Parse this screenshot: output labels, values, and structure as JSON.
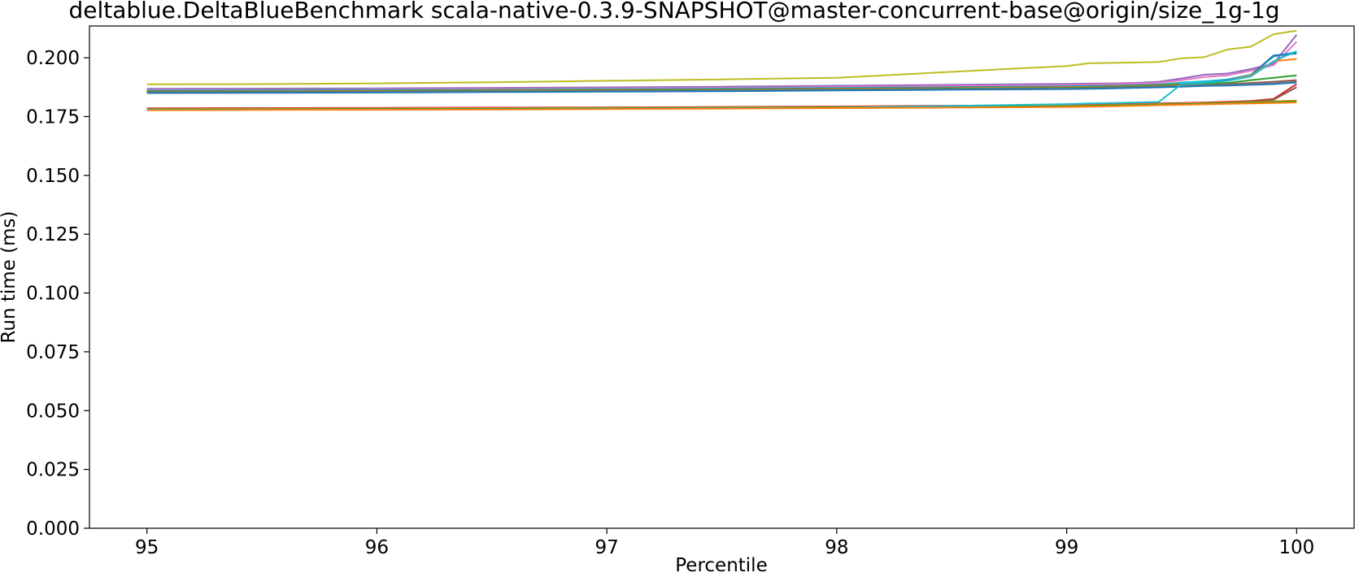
{
  "chart_data": {
    "type": "line",
    "title": "deltablue.DeltaBlueBenchmark scala-native-0.3.9-SNAPSHOT@master-concurrent-base@origin/size_1g-1g",
    "xlabel": "Percentile",
    "ylabel": "Run time (ms)",
    "xlim": [
      94.75,
      100.25
    ],
    "ylim": [
      0.0,
      0.2135
    ],
    "grid": false,
    "legend": "none",
    "xticks": [
      95,
      96,
      97,
      98,
      99,
      100
    ],
    "xtick_labels": [
      "95",
      "96",
      "97",
      "98",
      "99",
      "100"
    ],
    "yticks": [
      0.0,
      0.025,
      0.05,
      0.075,
      0.1,
      0.125,
      0.15,
      0.175,
      0.2
    ],
    "ytick_labels": [
      "0.000",
      "0.025",
      "0.050",
      "0.075",
      "0.100",
      "0.125",
      "0.150",
      "0.175",
      "0.200"
    ],
    "x": [
      95.0,
      95.5,
      96.0,
      96.5,
      97.0,
      97.5,
      98.0,
      98.5,
      99.0,
      99.1,
      99.2,
      99.3,
      99.4,
      99.5,
      99.6,
      99.7,
      99.8,
      99.9,
      100.0
    ],
    "series": [
      {
        "color": "#bcbd22",
        "values": [
          0.1887,
          0.1888,
          0.1891,
          0.1896,
          0.1902,
          0.1908,
          0.1915,
          0.194,
          0.1965,
          0.1977,
          0.1978,
          0.198,
          0.1982,
          0.1998,
          0.2003,
          0.2035,
          0.2047,
          0.21,
          0.2115
        ]
      },
      {
        "color": "#9467bd",
        "values": [
          0.1868,
          0.1869,
          0.187,
          0.1872,
          0.1874,
          0.1877,
          0.1881,
          0.1885,
          0.1889,
          0.189,
          0.1891,
          0.1893,
          0.1898,
          0.1912,
          0.1928,
          0.1933,
          0.1952,
          0.1975,
          0.2098
        ]
      },
      {
        "color": "#e377c2",
        "values": [
          0.1864,
          0.1865,
          0.1866,
          0.1868,
          0.187,
          0.1872,
          0.1876,
          0.188,
          0.1884,
          0.1886,
          0.1888,
          0.189,
          0.1894,
          0.1905,
          0.1918,
          0.1925,
          0.1945,
          0.1968,
          0.2068
        ]
      },
      {
        "color": "#17becf",
        "values": [
          0.1861,
          0.1862,
          0.1863,
          0.1865,
          0.1867,
          0.1869,
          0.1872,
          0.1875,
          0.1879,
          0.188,
          0.1882,
          0.1884,
          0.1887,
          0.1895,
          0.19,
          0.1908,
          0.1928,
          0.2005,
          0.2025
        ]
      },
      {
        "color": "#1f77b4",
        "values": [
          0.1859,
          0.186,
          0.1861,
          0.1863,
          0.1865,
          0.1867,
          0.187,
          0.1873,
          0.1877,
          0.1878,
          0.188,
          0.1882,
          0.1885,
          0.1888,
          0.1893,
          0.1905,
          0.1925,
          0.201,
          0.2018
        ]
      },
      {
        "color": "#ff7f0e",
        "values": [
          0.1857,
          0.1858,
          0.1859,
          0.1861,
          0.1863,
          0.1865,
          0.1868,
          0.1871,
          0.1875,
          0.1876,
          0.1878,
          0.188,
          0.1883,
          0.1887,
          0.1891,
          0.1902,
          0.1925,
          0.1985,
          0.1995
        ]
      },
      {
        "color": "#2ca02c",
        "values": [
          0.1855,
          0.1856,
          0.1857,
          0.1859,
          0.1861,
          0.1863,
          0.1866,
          0.1869,
          0.1872,
          0.1874,
          0.1876,
          0.1878,
          0.1881,
          0.1885,
          0.1888,
          0.1893,
          0.1905,
          0.1915,
          0.1925
        ]
      },
      {
        "color": "#8c564b",
        "values": [
          0.1853,
          0.1854,
          0.1855,
          0.1857,
          0.1859,
          0.1861,
          0.1864,
          0.1867,
          0.187,
          0.1871,
          0.1873,
          0.1875,
          0.1878,
          0.1881,
          0.1884,
          0.1888,
          0.1893,
          0.1898,
          0.1905
        ]
      },
      {
        "color": "#7f7f7f",
        "values": [
          0.1852,
          0.1853,
          0.1854,
          0.1856,
          0.1858,
          0.186,
          0.1863,
          0.1866,
          0.1869,
          0.187,
          0.1872,
          0.1874,
          0.1877,
          0.188,
          0.1883,
          0.1886,
          0.1888,
          0.1892,
          0.1898
        ]
      },
      {
        "color": "#1f77b4",
        "values": [
          0.185,
          0.1851,
          0.1852,
          0.1854,
          0.1856,
          0.1858,
          0.1861,
          0.1864,
          0.1867,
          0.1868,
          0.187,
          0.1872,
          0.1874,
          0.1877,
          0.188,
          0.1882,
          0.1885,
          0.1888,
          0.1895
        ]
      },
      {
        "color": "#d62728",
        "values": [
          0.1785,
          0.1786,
          0.1787,
          0.1788,
          0.1789,
          0.1791,
          0.1793,
          0.1796,
          0.1799,
          0.18,
          0.1802,
          0.1804,
          0.1806,
          0.1808,
          0.181,
          0.1813,
          0.1816,
          0.1825,
          0.1888
        ]
      },
      {
        "color": "#8c564b",
        "values": [
          0.1783,
          0.1784,
          0.1785,
          0.1786,
          0.1788,
          0.179,
          0.1792,
          0.1794,
          0.1797,
          0.1798,
          0.18,
          0.1802,
          0.1804,
          0.1806,
          0.1808,
          0.181,
          0.1814,
          0.1822,
          0.1875
        ]
      },
      {
        "color": "#ff7f0e",
        "values": [
          0.1782,
          0.1783,
          0.1784,
          0.1785,
          0.1787,
          0.1789,
          0.1791,
          0.1793,
          0.1796,
          0.1797,
          0.1799,
          0.1801,
          0.1803,
          0.1805,
          0.1807,
          0.1809,
          0.1812,
          0.1815,
          0.1818
        ]
      },
      {
        "color": "#2ca02c",
        "values": [
          0.178,
          0.1781,
          0.1782,
          0.1783,
          0.1785,
          0.1787,
          0.1789,
          0.1791,
          0.1794,
          0.1795,
          0.1797,
          0.1799,
          0.1801,
          0.1803,
          0.1805,
          0.1807,
          0.181,
          0.1812,
          0.1815
        ]
      },
      {
        "color": "#17becf",
        "values": [
          0.1778,
          0.1779,
          0.178,
          0.1781,
          0.1783,
          0.1785,
          0.1787,
          0.1795,
          0.1803,
          0.1806,
          0.1808,
          0.181,
          0.1812,
          0.1888,
          0.1893,
          0.1902,
          0.192,
          0.1985,
          0.2028
        ]
      },
      {
        "color": "#ff7f0e",
        "values": [
          0.1777,
          0.1778,
          0.1779,
          0.178,
          0.1782,
          0.1784,
          0.1786,
          0.1788,
          0.1791,
          0.1792,
          0.1794,
          0.1796,
          0.1798,
          0.18,
          0.1802,
          0.1804,
          0.1806,
          0.1808,
          0.181
        ]
      }
    ]
  }
}
